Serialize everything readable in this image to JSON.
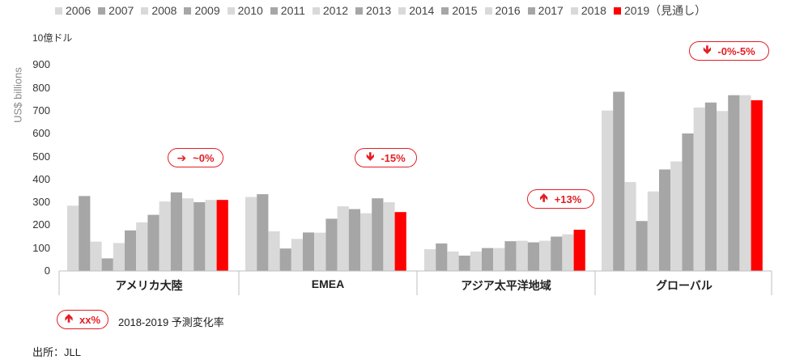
{
  "chart_data": {
    "type": "bar",
    "units_label": "10億ドル",
    "ylabel": "US$ billions",
    "ylim": [
      0,
      900
    ],
    "yticks": [
      "0",
      "100",
      "200",
      "300",
      "400",
      "500",
      "600",
      "700",
      "800",
      "900"
    ],
    "categories": [
      "アメリカ大陸",
      "EMEA",
      "アジア太平洋地域",
      "グローバル"
    ],
    "series": [
      {
        "name": "2006",
        "color": "#d9d9d9",
        "values": [
          285,
          323,
          95,
          700
        ]
      },
      {
        "name": "2007",
        "color": "#a6a6a6",
        "values": [
          327,
          335,
          120,
          782
        ]
      },
      {
        "name": "2008",
        "color": "#d9d9d9",
        "values": [
          128,
          173,
          85,
          388
        ]
      },
      {
        "name": "2009",
        "color": "#a6a6a6",
        "values": [
          55,
          98,
          67,
          218
        ]
      },
      {
        "name": "2010",
        "color": "#d9d9d9",
        "values": [
          122,
          140,
          85,
          347
        ]
      },
      {
        "name": "2011",
        "color": "#a6a6a6",
        "values": [
          177,
          168,
          100,
          443
        ]
      },
      {
        "name": "2012",
        "color": "#d9d9d9",
        "values": [
          212,
          167,
          100,
          478
        ]
      },
      {
        "name": "2013",
        "color": "#a6a6a6",
        "values": [
          245,
          228,
          130,
          600
        ]
      },
      {
        "name": "2014",
        "color": "#d9d9d9",
        "values": [
          303,
          282,
          132,
          713
        ]
      },
      {
        "name": "2015",
        "color": "#a6a6a6",
        "values": [
          343,
          270,
          125,
          735
        ]
      },
      {
        "name": "2016",
        "color": "#d9d9d9",
        "values": [
          317,
          252,
          132,
          698
        ]
      },
      {
        "name": "2017",
        "color": "#a6a6a6",
        "values": [
          300,
          317,
          150,
          767
        ]
      },
      {
        "name": "2018",
        "color": "#d9d9d9",
        "values": [
          310,
          300,
          160,
          767
        ]
      },
      {
        "name": "2019（見通し）",
        "color": "#ff0000",
        "values": [
          310,
          257,
          180,
          745
        ]
      }
    ],
    "annotations": [
      {
        "direction": "right",
        "text": "~0%"
      },
      {
        "direction": "down",
        "text": "-15%"
      },
      {
        "direction": "up",
        "text": "+13%"
      },
      {
        "direction": "down",
        "text": "-0%-5%"
      }
    ],
    "key": {
      "direction": "up",
      "text": "xx%",
      "description": "2018-2019 予測変化率"
    },
    "source": "出所：JLL",
    "accent_color": "#e31e24",
    "grid": false,
    "legend_position": "top"
  }
}
